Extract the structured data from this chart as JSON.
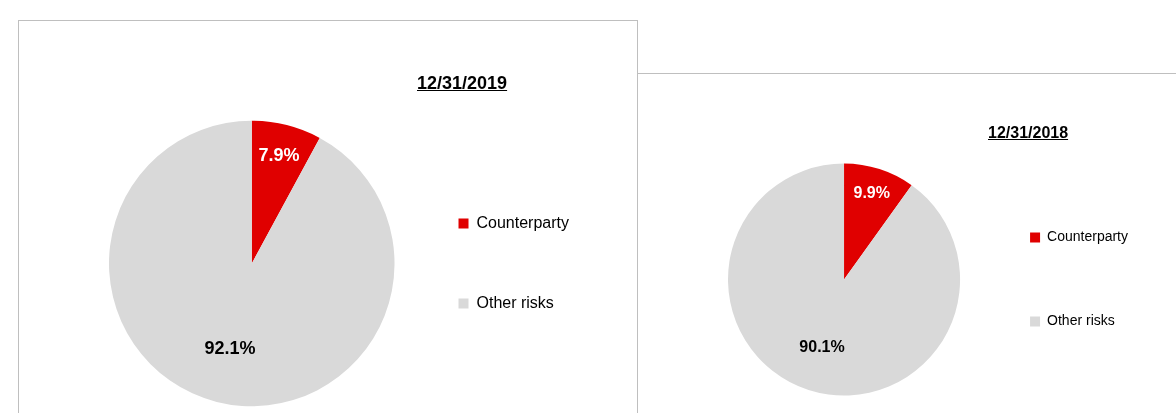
{
  "chart_data": [
    {
      "type": "pie",
      "title": "12/31/2019",
      "categories": [
        "Counterparty",
        "Other risks"
      ],
      "values": [
        7.9,
        92.1
      ],
      "colors": [
        "#e00000",
        "#d9d9d9"
      ],
      "value_labels": [
        "7.9%",
        "92.1%"
      ],
      "legend": "right"
    },
    {
      "type": "pie",
      "title": "12/31/2018",
      "categories": [
        "Counterparty",
        "Other risks"
      ],
      "values": [
        9.9,
        90.1
      ],
      "colors": [
        "#e00000",
        "#d9d9d9"
      ],
      "value_labels": [
        "9.9%",
        "90.1%"
      ],
      "legend": "right"
    }
  ]
}
